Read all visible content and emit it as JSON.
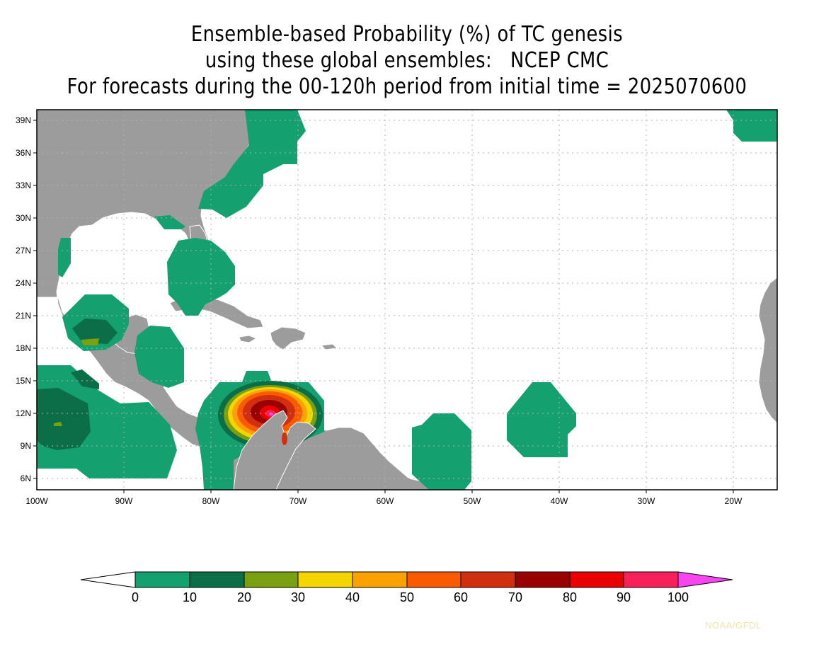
{
  "title": {
    "line1": "Ensemble-based Probability (%) of TC genesis",
    "line2": "using these global ensembles:   NCEP CMC",
    "line3": "For forecasts during the 00-120h period from initial time = 2025070600"
  },
  "map": {
    "lat_labels": [
      "39N",
      "36N",
      "33N",
      "30N",
      "27N",
      "24N",
      "21N",
      "18N",
      "15N",
      "12N",
      "9N",
      "6N"
    ],
    "lon_labels": [
      "100W",
      "90W",
      "80W",
      "70W",
      "60W",
      "50W",
      "40W",
      "30W",
      "20W"
    ],
    "land_color": "#9c9c9c",
    "border_color": "#ffffff",
    "grid": true
  },
  "colorbar": {
    "labels": [
      "0",
      "10",
      "20",
      "30",
      "40",
      "50",
      "60",
      "70",
      "80",
      "90",
      "100"
    ],
    "colors": [
      "#ffffff",
      "#15a070",
      "#0b6e46",
      "#78a010",
      "#f5d500",
      "#fba200",
      "#fc5a00",
      "#d13010",
      "#9a0000",
      "#ea0000",
      "#f8205a",
      "#f845f0"
    ]
  },
  "credit": "NOAA/GFDL"
}
